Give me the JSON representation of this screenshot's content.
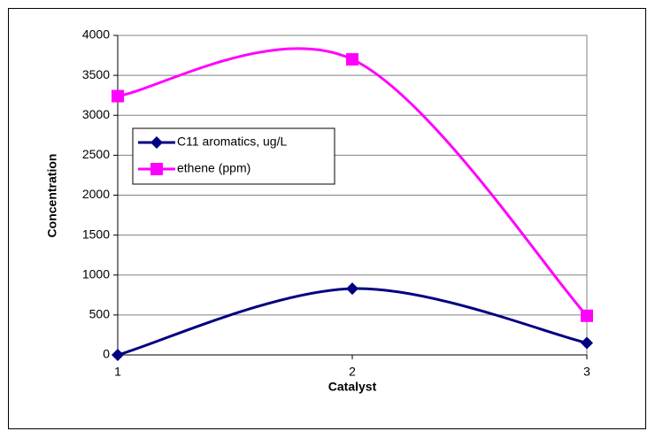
{
  "chart_data": {
    "type": "line",
    "x": [
      1,
      2,
      3
    ],
    "series": [
      {
        "name": "C11 aromatics, ug/L",
        "color": "#000080",
        "marker": "diamond",
        "values": [
          0,
          830,
          150
        ]
      },
      {
        "name": "ethene (ppm)",
        "color": "#ff00ff",
        "marker": "square",
        "values": [
          3240,
          3700,
          490
        ]
      }
    ],
    "xlabel": "Catalyst",
    "ylabel": "Concentration",
    "xlim": [
      1,
      3
    ],
    "xticks": [
      1,
      2,
      3
    ],
    "ylim": [
      0,
      4000
    ],
    "yticks": [
      0,
      500,
      1000,
      1500,
      2000,
      2500,
      3000,
      3500,
      4000
    ],
    "grid": true,
    "smooth": true,
    "legend": "left"
  }
}
